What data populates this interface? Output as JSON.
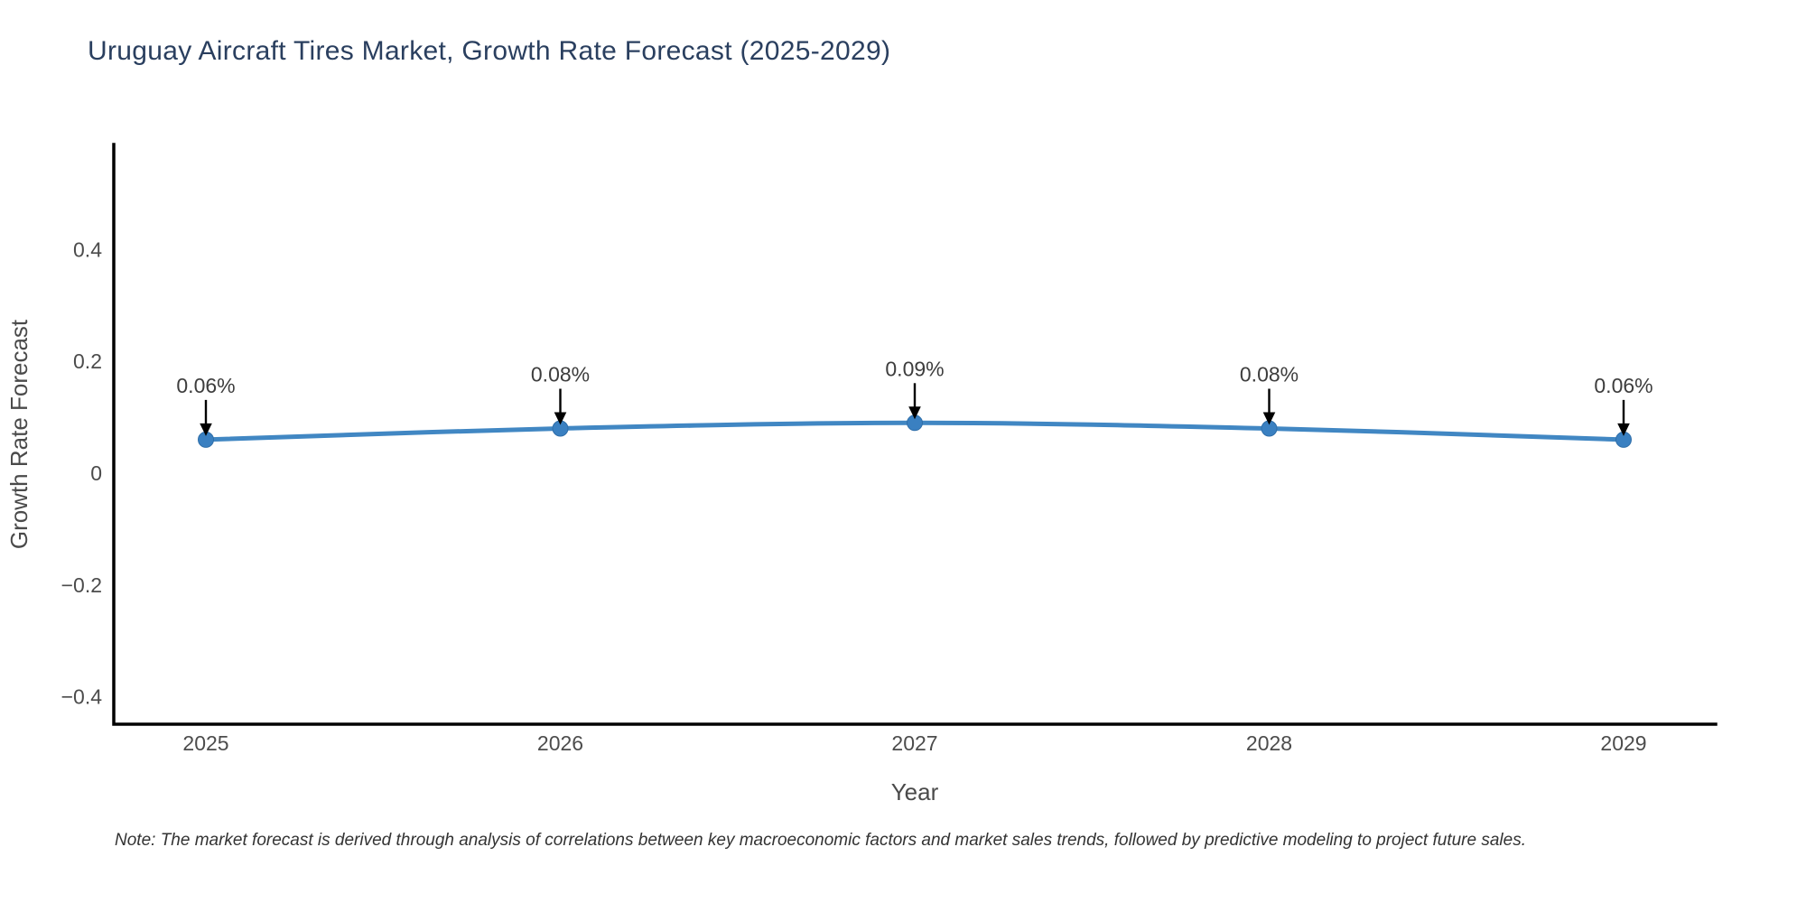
{
  "page": {
    "background": "#ffffff"
  },
  "title": {
    "text": "Uruguay Aircraft Tires Market, Growth Rate Forecast (2025-2029)",
    "color": "#2a3f5f"
  },
  "note": {
    "text": "Note: The market forecast is derived through analysis of correlations between key macroeconomic factors and market sales trends, followed by predictive modeling to project future sales."
  },
  "chart_data": {
    "type": "line",
    "title": "Uruguay Aircraft Tires Market, Growth Rate Forecast (2025-2029)",
    "x": [
      "2025",
      "2026",
      "2027",
      "2028",
      "2029"
    ],
    "y": [
      0.06,
      0.08,
      0.09,
      0.08,
      0.06
    ],
    "point_labels": [
      "0.06%",
      "0.08%",
      "0.09%",
      "0.08%",
      "0.06%"
    ],
    "xlabel": "Year",
    "ylabel": "Growth Rate Forecast",
    "yticks": [
      0.4,
      0.2,
      0,
      -0.2,
      -0.4
    ],
    "ytick_labels": [
      "0.4",
      "0.2",
      "0",
      "−0.2",
      "−0.4"
    ],
    "ylim": [
      -0.449,
      0.588
    ],
    "grid": false,
    "legend_position": "none",
    "line_color": "#4187c3",
    "marker_color": "#3a80c1",
    "marker_edge_color": "#2f6ea9",
    "axis_color": "#000000",
    "tick_color": "#4c4c4c",
    "annotation_text_color": "#3d3d3d",
    "arrow_color": "#000000"
  }
}
